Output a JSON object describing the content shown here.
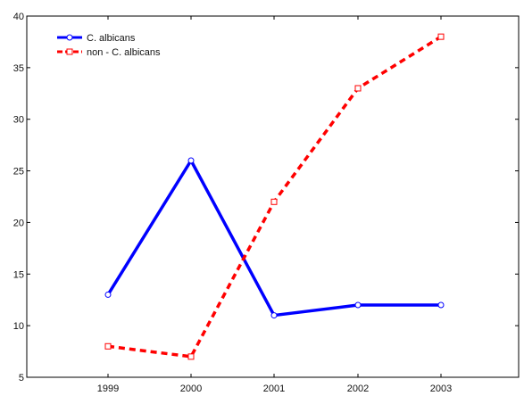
{
  "chart_data": {
    "type": "line",
    "title": "",
    "xlabel": "",
    "ylabel": "",
    "categories": [
      "1999",
      "2000",
      "2001",
      "2002",
      "2003"
    ],
    "ylim": [
      5,
      40
    ],
    "yticks": [
      5,
      10,
      15,
      20,
      25,
      30,
      35,
      40
    ],
    "grid": false,
    "legend_position": "top-left",
    "series": [
      {
        "name": "C. albicans",
        "values": [
          13,
          26,
          11,
          12,
          12
        ],
        "color": "#0000ff",
        "line_style": "solid",
        "marker": "circle"
      },
      {
        "name": "non - C. albicans",
        "values": [
          8,
          7,
          22,
          33,
          38
        ],
        "color": "#ff0000",
        "line_style": "dashed",
        "marker": "square"
      }
    ]
  }
}
